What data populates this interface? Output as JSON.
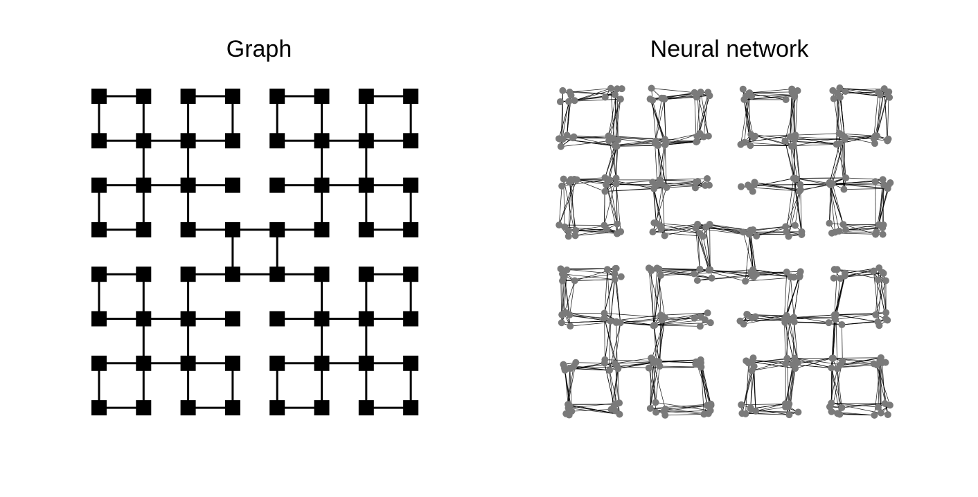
{
  "panels": {
    "left": {
      "title": "Graph",
      "node_color": "#000000",
      "edge_color": "#000000",
      "node_shape": "square"
    },
    "right": {
      "title": "Neural network",
      "node_color": "#7a7a7a",
      "edge_color": "#000000",
      "node_shape": "circle"
    }
  },
  "graph": {
    "description": "H-tree style grid graph, 8x8 nodes",
    "rows": 8,
    "cols": 8,
    "edges": [
      [
        [
          0,
          0
        ],
        [
          0,
          1
        ]
      ],
      [
        [
          0,
          2
        ],
        [
          0,
          3
        ]
      ],
      [
        [
          0,
          4
        ],
        [
          0,
          5
        ]
      ],
      [
        [
          0,
          6
        ],
        [
          0,
          7
        ]
      ],
      [
        [
          1,
          0
        ],
        [
          1,
          1
        ]
      ],
      [
        [
          1,
          1
        ],
        [
          1,
          2
        ]
      ],
      [
        [
          1,
          2
        ],
        [
          1,
          3
        ]
      ],
      [
        [
          1,
          4
        ],
        [
          1,
          5
        ]
      ],
      [
        [
          1,
          5
        ],
        [
          1,
          6
        ]
      ],
      [
        [
          1,
          6
        ],
        [
          1,
          7
        ]
      ],
      [
        [
          2,
          0
        ],
        [
          2,
          1
        ]
      ],
      [
        [
          2,
          1
        ],
        [
          2,
          2
        ]
      ],
      [
        [
          2,
          2
        ],
        [
          2,
          3
        ]
      ],
      [
        [
          2,
          4
        ],
        [
          2,
          5
        ]
      ],
      [
        [
          2,
          5
        ],
        [
          2,
          6
        ]
      ],
      [
        [
          2,
          6
        ],
        [
          2,
          7
        ]
      ],
      [
        [
          3,
          0
        ],
        [
          3,
          1
        ]
      ],
      [
        [
          3,
          2
        ],
        [
          3,
          3
        ]
      ],
      [
        [
          3,
          3
        ],
        [
          3,
          4
        ]
      ],
      [
        [
          3,
          4
        ],
        [
          3,
          5
        ]
      ],
      [
        [
          3,
          6
        ],
        [
          3,
          7
        ]
      ],
      [
        [
          4,
          0
        ],
        [
          4,
          1
        ]
      ],
      [
        [
          4,
          2
        ],
        [
          4,
          3
        ]
      ],
      [
        [
          4,
          3
        ],
        [
          4,
          4
        ]
      ],
      [
        [
          4,
          4
        ],
        [
          4,
          5
        ]
      ],
      [
        [
          4,
          6
        ],
        [
          4,
          7
        ]
      ],
      [
        [
          5,
          0
        ],
        [
          5,
          1
        ]
      ],
      [
        [
          5,
          1
        ],
        [
          5,
          2
        ]
      ],
      [
        [
          5,
          2
        ],
        [
          5,
          3
        ]
      ],
      [
        [
          5,
          4
        ],
        [
          5,
          5
        ]
      ],
      [
        [
          5,
          5
        ],
        [
          5,
          6
        ]
      ],
      [
        [
          5,
          6
        ],
        [
          5,
          7
        ]
      ],
      [
        [
          6,
          0
        ],
        [
          6,
          1
        ]
      ],
      [
        [
          6,
          1
        ],
        [
          6,
          2
        ]
      ],
      [
        [
          6,
          2
        ],
        [
          6,
          3
        ]
      ],
      [
        [
          6,
          4
        ],
        [
          6,
          5
        ]
      ],
      [
        [
          6,
          5
        ],
        [
          6,
          6
        ]
      ],
      [
        [
          6,
          6
        ],
        [
          6,
          7
        ]
      ],
      [
        [
          7,
          0
        ],
        [
          7,
          1
        ]
      ],
      [
        [
          7,
          2
        ],
        [
          7,
          3
        ]
      ],
      [
        [
          7,
          4
        ],
        [
          7,
          5
        ]
      ],
      [
        [
          7,
          6
        ],
        [
          7,
          7
        ]
      ],
      [
        [
          0,
          0
        ],
        [
          1,
          0
        ]
      ],
      [
        [
          0,
          1
        ],
        [
          1,
          1
        ]
      ],
      [
        [
          0,
          2
        ],
        [
          1,
          2
        ]
      ],
      [
        [
          0,
          3
        ],
        [
          1,
          3
        ]
      ],
      [
        [
          0,
          4
        ],
        [
          1,
          4
        ]
      ],
      [
        [
          0,
          5
        ],
        [
          1,
          5
        ]
      ],
      [
        [
          0,
          6
        ],
        [
          1,
          6
        ]
      ],
      [
        [
          0,
          7
        ],
        [
          1,
          7
        ]
      ],
      [
        [
          1,
          1
        ],
        [
          2,
          1
        ]
      ],
      [
        [
          1,
          2
        ],
        [
          2,
          2
        ]
      ],
      [
        [
          1,
          5
        ],
        [
          2,
          5
        ]
      ],
      [
        [
          1,
          6
        ],
        [
          2,
          6
        ]
      ],
      [
        [
          2,
          0
        ],
        [
          3,
          0
        ]
      ],
      [
        [
          2,
          1
        ],
        [
          3,
          1
        ]
      ],
      [
        [
          2,
          2
        ],
        [
          3,
          2
        ]
      ],
      [
        [
          2,
          5
        ],
        [
          3,
          5
        ]
      ],
      [
        [
          2,
          6
        ],
        [
          3,
          6
        ]
      ],
      [
        [
          2,
          7
        ],
        [
          3,
          7
        ]
      ],
      [
        [
          3,
          3
        ],
        [
          4,
          3
        ]
      ],
      [
        [
          3,
          4
        ],
        [
          4,
          4
        ]
      ],
      [
        [
          4,
          0
        ],
        [
          5,
          0
        ]
      ],
      [
        [
          4,
          1
        ],
        [
          5,
          1
        ]
      ],
      [
        [
          4,
          2
        ],
        [
          5,
          2
        ]
      ],
      [
        [
          4,
          5
        ],
        [
          5,
          5
        ]
      ],
      [
        [
          4,
          6
        ],
        [
          5,
          6
        ]
      ],
      [
        [
          4,
          7
        ],
        [
          5,
          7
        ]
      ],
      [
        [
          5,
          1
        ],
        [
          6,
          1
        ]
      ],
      [
        [
          5,
          2
        ],
        [
          6,
          2
        ]
      ],
      [
        [
          5,
          5
        ],
        [
          6,
          5
        ]
      ],
      [
        [
          5,
          6
        ],
        [
          6,
          6
        ]
      ],
      [
        [
          6,
          0
        ],
        [
          7,
          0
        ]
      ],
      [
        [
          6,
          1
        ],
        [
          7,
          1
        ]
      ],
      [
        [
          6,
          2
        ],
        [
          7,
          2
        ]
      ],
      [
        [
          6,
          3
        ],
        [
          7,
          3
        ]
      ],
      [
        [
          6,
          4
        ],
        [
          7,
          4
        ]
      ],
      [
        [
          6,
          5
        ],
        [
          7,
          5
        ]
      ],
      [
        [
          6,
          6
        ],
        [
          7,
          6
        ]
      ],
      [
        [
          6,
          7
        ],
        [
          7,
          7
        ]
      ]
    ]
  }
}
